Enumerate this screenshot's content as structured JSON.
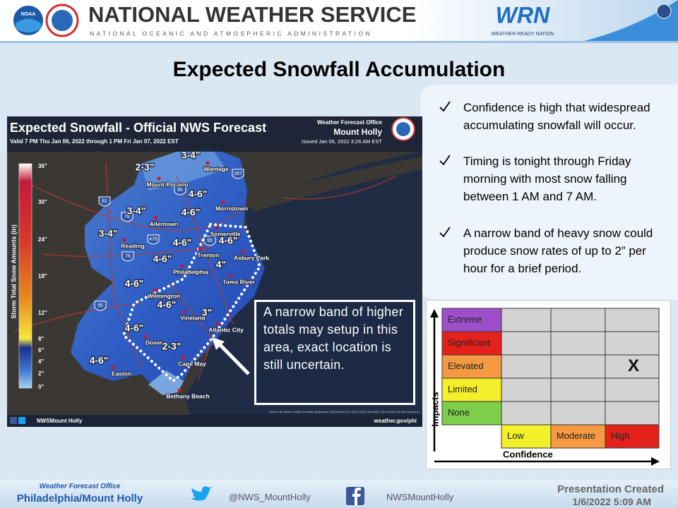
{
  "header": {
    "title": "NATIONAL WEATHER SERVICE",
    "subtitle": "NATIONAL OCEANIC AND ATMOSPHERIC ADMINISTRATION",
    "noaa_logo": "NOAA",
    "wrn_logo": "WRN",
    "wrn_tagline": "WEATHER-READY NATION"
  },
  "title": "Expected Snowfall Accumulation",
  "bullets": [
    "Confidence is high that widespread accumulating snowfall will occur.",
    "Timing is tonight through Friday morning with most snow falling between 1 AM and 7 AM.",
    "A narrow band of heavy snow could produce snow rates of up to 2” per hour for a brief period."
  ],
  "map": {
    "title": "Expected Snowfall - Official NWS Forecast",
    "valid": "Valid 7 PM Thu Jan 06, 2022 through 1 PM Fri Jan 07, 2022 EST",
    "office": "Weather Forecast Office",
    "office_name": "Mount Holly",
    "issued": "Issued Jan 06, 2022 3:26 AM EST",
    "legend_title": "Storm Total Snow Amounts (in)",
    "legend_ticks": [
      "36\"",
      "30\"",
      "24\"",
      "18\"",
      "12\"",
      "8\"",
      "6\"",
      "4\"",
      "2\"",
      "0\""
    ],
    "amounts": [
      "3-4\"",
      "2-3\"",
      "4-6\"",
      "4-6\"",
      "3-4\"",
      "3-4\"",
      "4-6\"",
      "4-6\"",
      "4-6\"",
      "4\"",
      "4-6\"",
      "4-6\"",
      "3\"",
      "4-6\"",
      "2-3\"",
      "4-6\""
    ],
    "places": [
      "Wantage",
      "Mount Pocono",
      "Morristown",
      "Allentown",
      "Somerville",
      "Reading",
      "Trenton",
      "Asbury Park",
      "Philadelphia",
      "Toms River",
      "Wilmington",
      "Vineland",
      "Atlantic City",
      "Dover",
      "Cape May",
      "Easton",
      "Bethany Beach"
    ],
    "highways": [
      "287",
      "80",
      "81",
      "78",
      "476",
      "95",
      "76",
      "95"
    ],
    "source": "Source: Esri, Maxar, GeoEye, Earthstar Geographics, CNES/Airbus DS, USDA, USGS, AeroGRID, IGN, and the GIS User Community",
    "social": "NWSMount Holly",
    "url": "weather.gov/phi"
  },
  "callout": "A narrow band of higher totals may setup in this area, exact location is still uncertain.",
  "impact_chart": {
    "impacts": [
      "Extreme",
      "Significant",
      "Elevated",
      "Limited",
      "None"
    ],
    "confidence": [
      "Low",
      "Moderate",
      "High"
    ],
    "y_label": "Impacts",
    "x_label": "Confidence",
    "marker": "X"
  },
  "footer": {
    "office": "Weather Forecast Office",
    "office_name": "Philadelphia/Mount Holly",
    "twitter": "@NWS_MountHolly",
    "facebook": "NWSMountHolly",
    "created": "Presentation Created",
    "created_date": "1/6/2022 5:09 AM"
  }
}
